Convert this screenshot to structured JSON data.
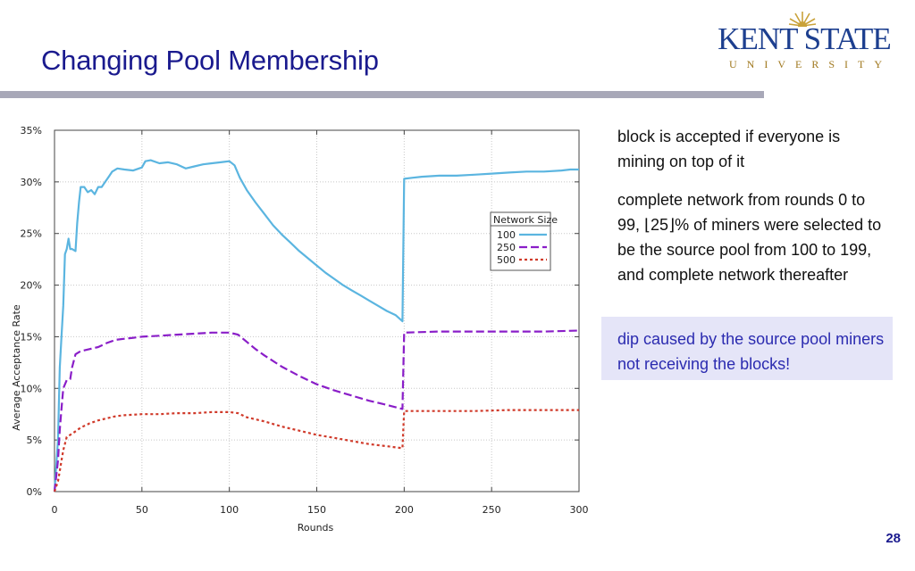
{
  "slide": {
    "title": "Changing Pool Membership",
    "page_number": "28"
  },
  "logo": {
    "name": "KENT STATE",
    "sub": "UNIVERSITY"
  },
  "notes": {
    "note1": "block is accepted if everyone is mining on top of it",
    "note2": "complete network from rounds 0 to 99, ⌊25⌋% of miners were selected to be the source pool from 100 to 199, and complete network thereafter",
    "note3": "dip caused by the source pool miners not receiving the blocks!",
    "note3_color": "#2b2bb0",
    "highlight_color": "#e5e5f8"
  },
  "chart_data": {
    "type": "line",
    "xlabel": "Rounds",
    "ylabel": "Average Acceptance Rate",
    "xlim": [
      0,
      300
    ],
    "ylim": [
      0,
      35
    ],
    "xticks": [
      0,
      50,
      100,
      150,
      200,
      250,
      300
    ],
    "yticks": [
      "0%",
      "5%",
      "10%",
      "15%",
      "20%",
      "25%",
      "30%",
      "35%"
    ],
    "grid": true,
    "legend": {
      "title": "Network Size",
      "position": "top-right"
    },
    "series": [
      {
        "name": "100",
        "color": "#5bb5e0",
        "dash": "solid",
        "points": [
          [
            0,
            0
          ],
          [
            2,
            5
          ],
          [
            3,
            12
          ],
          [
            4,
            15
          ],
          [
            5,
            18
          ],
          [
            6,
            23
          ],
          [
            7,
            23.5
          ],
          [
            8,
            24.5
          ],
          [
            9,
            23.5
          ],
          [
            10,
            23.5
          ],
          [
            12,
            23.3
          ],
          [
            13,
            26
          ],
          [
            14,
            28
          ],
          [
            15,
            29.5
          ],
          [
            17,
            29.5
          ],
          [
            19,
            29
          ],
          [
            21,
            29.2
          ],
          [
            23,
            28.8
          ],
          [
            25,
            29.5
          ],
          [
            27,
            29.5
          ],
          [
            29,
            30
          ],
          [
            31,
            30.5
          ],
          [
            33,
            31
          ],
          [
            36,
            31.3
          ],
          [
            40,
            31.2
          ],
          [
            45,
            31.1
          ],
          [
            50,
            31.4
          ],
          [
            52,
            32
          ],
          [
            55,
            32.1
          ],
          [
            60,
            31.8
          ],
          [
            65,
            31.9
          ],
          [
            70,
            31.7
          ],
          [
            75,
            31.3
          ],
          [
            80,
            31.5
          ],
          [
            85,
            31.7
          ],
          [
            90,
            31.8
          ],
          [
            95,
            31.9
          ],
          [
            100,
            32
          ],
          [
            103,
            31.6
          ],
          [
            106,
            30.4
          ],
          [
            110,
            29.2
          ],
          [
            115,
            28
          ],
          [
            120,
            26.9
          ],
          [
            125,
            25.8
          ],
          [
            130,
            24.9
          ],
          [
            135,
            24.1
          ],
          [
            140,
            23.3
          ],
          [
            145,
            22.6
          ],
          [
            150,
            21.9
          ],
          [
            155,
            21.2
          ],
          [
            160,
            20.6
          ],
          [
            165,
            20
          ],
          [
            170,
            19.5
          ],
          [
            175,
            19
          ],
          [
            180,
            18.5
          ],
          [
            185,
            18
          ],
          [
            190,
            17.5
          ],
          [
            195,
            17.1
          ],
          [
            199,
            16.5
          ],
          [
            200,
            30.3
          ],
          [
            205,
            30.4
          ],
          [
            210,
            30.5
          ],
          [
            220,
            30.6
          ],
          [
            230,
            30.6
          ],
          [
            240,
            30.7
          ],
          [
            250,
            30.8
          ],
          [
            260,
            30.9
          ],
          [
            270,
            31
          ],
          [
            280,
            31
          ],
          [
            290,
            31.1
          ],
          [
            295,
            31.2
          ],
          [
            300,
            31.2
          ]
        ]
      },
      {
        "name": "250",
        "color": "#8a1ec8",
        "dash": "long",
        "points": [
          [
            0,
            0
          ],
          [
            2,
            3
          ],
          [
            3,
            6
          ],
          [
            4,
            8
          ],
          [
            5,
            10
          ],
          [
            7,
            10.8
          ],
          [
            9,
            10.9
          ],
          [
            10,
            12
          ],
          [
            12,
            13.3
          ],
          [
            15,
            13.6
          ],
          [
            20,
            13.8
          ],
          [
            25,
            14
          ],
          [
            30,
            14.4
          ],
          [
            35,
            14.7
          ],
          [
            40,
            14.8
          ],
          [
            45,
            14.9
          ],
          [
            50,
            15
          ],
          [
            60,
            15.1
          ],
          [
            70,
            15.2
          ],
          [
            80,
            15.3
          ],
          [
            90,
            15.4
          ],
          [
            100,
            15.4
          ],
          [
            105,
            15.2
          ],
          [
            110,
            14.5
          ],
          [
            115,
            13.8
          ],
          [
            120,
            13.2
          ],
          [
            130,
            12.1
          ],
          [
            140,
            11.2
          ],
          [
            150,
            10.4
          ],
          [
            160,
            9.8
          ],
          [
            170,
            9.3
          ],
          [
            180,
            8.8
          ],
          [
            190,
            8.4
          ],
          [
            199,
            8
          ],
          [
            200,
            15.4
          ],
          [
            220,
            15.5
          ],
          [
            240,
            15.5
          ],
          [
            260,
            15.5
          ],
          [
            280,
            15.5
          ],
          [
            300,
            15.6
          ]
        ]
      },
      {
        "name": "500",
        "color": "#d03a2a",
        "dash": "short",
        "points": [
          [
            0,
            0
          ],
          [
            2,
            1
          ],
          [
            3,
            2
          ],
          [
            4,
            3
          ],
          [
            5,
            4
          ],
          [
            7,
            5.3
          ],
          [
            10,
            5.6
          ],
          [
            15,
            6.2
          ],
          [
            20,
            6.6
          ],
          [
            25,
            6.9
          ],
          [
            30,
            7.1
          ],
          [
            35,
            7.3
          ],
          [
            40,
            7.4
          ],
          [
            50,
            7.5
          ],
          [
            60,
            7.5
          ],
          [
            70,
            7.6
          ],
          [
            80,
            7.6
          ],
          [
            90,
            7.7
          ],
          [
            100,
            7.7
          ],
          [
            105,
            7.6
          ],
          [
            110,
            7.2
          ],
          [
            120,
            6.8
          ],
          [
            130,
            6.3
          ],
          [
            140,
            5.9
          ],
          [
            150,
            5.5
          ],
          [
            160,
            5.2
          ],
          [
            170,
            4.9
          ],
          [
            180,
            4.6
          ],
          [
            190,
            4.4
          ],
          [
            199,
            4.2
          ],
          [
            200,
            7.8
          ],
          [
            220,
            7.8
          ],
          [
            240,
            7.8
          ],
          [
            260,
            7.9
          ],
          [
            280,
            7.9
          ],
          [
            300,
            7.9
          ]
        ]
      }
    ]
  }
}
